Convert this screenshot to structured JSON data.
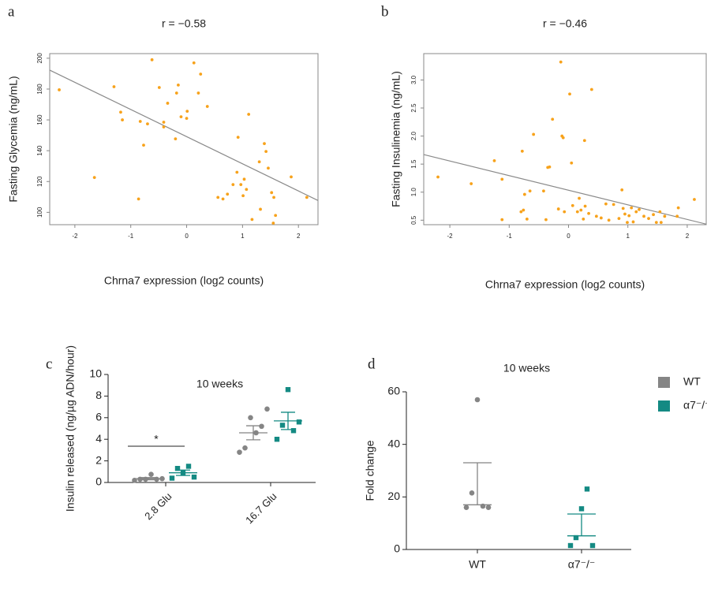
{
  "chart_data": [
    {
      "type": "scatter",
      "panel_label": "a",
      "title": "r = −0.58",
      "xlabel": "Chrna7 expression (log2 counts)",
      "ylabel": "Fasting Glycemia (ng/mL)",
      "color": "#f7a21b",
      "line_color": "#8a8a8a",
      "x": [
        -2.28,
        -1.65,
        -1.3,
        -1.18,
        -1.15,
        -0.86,
        -0.83,
        -0.77,
        -0.7,
        -0.62,
        -0.49,
        -0.41,
        -0.41,
        -0.34,
        -0.18,
        -0.15,
        -0.2,
        -0.1,
        0,
        0.01,
        0.13,
        0.21,
        0.25,
        0.37,
        0.56,
        0.65,
        0.73,
        0.83,
        0.92,
        0.9,
        0.97,
        1.03,
        1.01,
        1.07,
        1.11,
        1.17,
        1.3,
        1.32,
        1.39,
        1.42,
        1.46,
        1.52,
        1.56,
        1.59,
        1.55,
        1.87,
        2.15
      ],
      "y": [
        179.5,
        122.6,
        181.5,
        165,
        160,
        108.7,
        159,
        143.6,
        157.4,
        199,
        181,
        158.5,
        155.4,
        170.8,
        177.4,
        182.6,
        147.7,
        162,
        161,
        165.6,
        197,
        177.4,
        189.7,
        168.7,
        109.7,
        108.7,
        111.8,
        118,
        148.7,
        126,
        118,
        121.5,
        110.8,
        114.9,
        163.6,
        95.4,
        132.8,
        102,
        144.6,
        139.5,
        128.7,
        112.8,
        109.7,
        98,
        93,
        123,
        109.7
      ],
      "trendline": {
        "x": [
          -2.45,
          2.35
        ],
        "y": [
          192.3,
          107.7
        ]
      },
      "xlim": [
        -2.45,
        2.35
      ],
      "ylim": [
        92,
        203
      ],
      "xticks": [
        -2,
        -1,
        0,
        1,
        2
      ],
      "yticks": [
        100,
        120,
        140,
        160,
        180,
        200
      ]
    },
    {
      "type": "scatter",
      "panel_label": "b",
      "title": "r = −0.46",
      "xlabel": "Chrna7 expression (log2 counts)",
      "ylabel": "Fasting Insulinemia (ng/mL)",
      "color": "#f7a21b",
      "line_color": "#8a8a8a",
      "x": [
        -2.2,
        -1.64,
        -1.25,
        -1.12,
        -1.12,
        -0.8,
        -0.76,
        -0.74,
        -0.7,
        -0.78,
        -0.59,
        -0.65,
        -0.42,
        -0.38,
        -0.35,
        -0.32,
        -0.27,
        -0.17,
        -0.13,
        -0.11,
        -0.09,
        -0.07,
        0.02,
        0.05,
        0.07,
        0.15,
        0.18,
        0.21,
        0.25,
        0.27,
        0.28,
        0.34,
        0.39,
        0.47,
        0.55,
        0.63,
        0.68,
        0.76,
        0.85,
        0.9,
        0.92,
        0.95,
        0.99,
        1.02,
        1.06,
        1.09,
        1.14,
        1.19,
        1.27,
        1.35,
        1.43,
        1.48,
        1.54,
        1.56,
        1.62,
        1.83,
        1.85,
        2.12
      ],
      "y": [
        1.27,
        1.15,
        1.56,
        1.23,
        0.51,
        0.65,
        0.68,
        0.96,
        0.52,
        1.73,
        2.03,
        1.02,
        1.02,
        0.51,
        1.44,
        1.45,
        2.3,
        0.7,
        3.32,
        2.0,
        1.97,
        0.65,
        2.75,
        1.52,
        0.76,
        0.65,
        0.89,
        0.68,
        0.52,
        1.92,
        0.75,
        0.62,
        2.83,
        0.57,
        0.54,
        0.79,
        0.5,
        0.78,
        0.53,
        1.04,
        0.71,
        0.61,
        0.46,
        0.58,
        0.72,
        0.47,
        0.65,
        0.69,
        0.57,
        0.53,
        0.6,
        0.46,
        0.65,
        0.46,
        0.57,
        0.57,
        0.72,
        0.87
      ],
      "trendline": {
        "x": [
          -2.44,
          2.32
        ],
        "y": [
          1.67,
          0.43
        ]
      },
      "xlim": [
        -2.44,
        2.32
      ],
      "ylim": [
        0.42,
        3.47
      ],
      "xticks": [
        -2,
        -1,
        0,
        1,
        2
      ],
      "yticks": [
        0.5,
        {
          "value": 1,
          "label": "1.0"
        },
        1.5,
        {
          "value": 2,
          "label": "2.0"
        },
        2.5,
        {
          "value": 3,
          "label": "3.0"
        }
      ]
    },
    {
      "type": "dot",
      "panel_label": "c",
      "title": "10 weeks",
      "ylabel": "Insulin released (ng/µg ADN/hour)",
      "categories": [
        "2.8 Glu",
        "16.7 Glu"
      ],
      "series": [
        {
          "color": "#858585",
          "values": [
            [
              0.2,
              0.3,
              0.3,
              0.75,
              0.3,
              0.35
            ],
            [
              2.8,
              3.2,
              6.0,
              4.6,
              5.2,
              6.8
            ]
          ],
          "mean": [
            0.35,
            4.6
          ],
          "sem": [
            0.1,
            0.65
          ]
        },
        {
          "color": "#148a83",
          "values": [
            [
              0.4,
              1.3,
              0.9,
              1.5,
              0.5
            ],
            [
              4.0,
              5.3,
              8.6,
              4.8,
              5.6
            ]
          ],
          "mean": [
            0.9,
            5.7
          ],
          "sem": [
            0.25,
            0.8
          ]
        }
      ],
      "annotation": "*",
      "ylim": [
        0,
        10
      ],
      "yticks": [
        0,
        2,
        4,
        6,
        8,
        10
      ]
    },
    {
      "type": "dot",
      "panel_label": "d",
      "title": "10 weeks",
      "ylabel": "Fold change",
      "categories": [
        "WT",
        "α7⁻/⁻"
      ],
      "series": [
        {
          "name": "WT",
          "color": "#858585",
          "values": [
            [
              16,
              21.5,
              57,
              16.5,
              16
            ],
            null
          ],
          "mean": [
            17,
            null
          ],
          "upper": [
            33,
            null
          ]
        },
        {
          "name": "α7⁻/⁻",
          "color": "#148a83",
          "values": [
            null,
            [
              1.5,
              4.5,
              15.5,
              23,
              1.5
            ]
          ],
          "mean": [
            null,
            5.2
          ],
          "upper": [
            null,
            13.5
          ]
        }
      ],
      "ylim": [
        0,
        60
      ],
      "yticks": [
        0,
        20,
        40,
        60
      ],
      "legend": "right"
    }
  ]
}
